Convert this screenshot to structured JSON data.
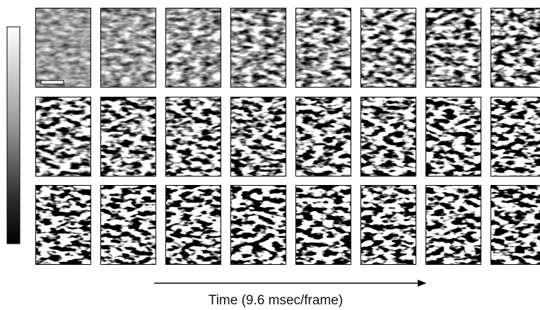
{
  "axis_label": "Time (9.6 msec/frame)"
}
